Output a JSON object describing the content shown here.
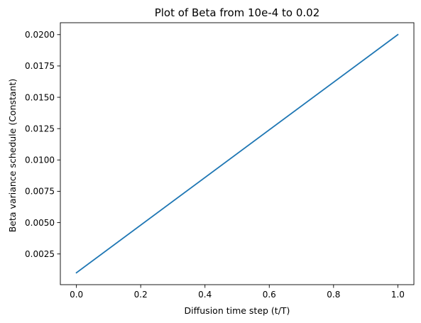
{
  "chart_data": {
    "type": "line",
    "title": "Plot of Beta from 10e-4 to 0.02",
    "xlabel": "Diffusion time step (t/T)",
    "ylabel": "Beta variance schedule (Constant)",
    "xlim": [
      -0.05,
      1.05
    ],
    "ylim": [
      5e-05,
      0.02095
    ],
    "x_ticks": [
      0.0,
      0.2,
      0.4,
      0.6,
      0.8,
      1.0
    ],
    "x_tick_labels": [
      "0.0",
      "0.2",
      "0.4",
      "0.6",
      "0.8",
      "1.0"
    ],
    "y_ticks": [
      0.0025,
      0.005,
      0.0075,
      0.01,
      0.0125,
      0.015,
      0.0175,
      0.02
    ],
    "y_tick_labels": [
      "0.0025",
      "0.0050",
      "0.0075",
      "0.0100",
      "0.0125",
      "0.0150",
      "0.0175",
      "0.0200"
    ],
    "grid": false,
    "series": [
      {
        "color": "#1f77b4",
        "x": [
          0.0,
          1.0
        ],
        "y": [
          0.001,
          0.02
        ]
      }
    ]
  }
}
